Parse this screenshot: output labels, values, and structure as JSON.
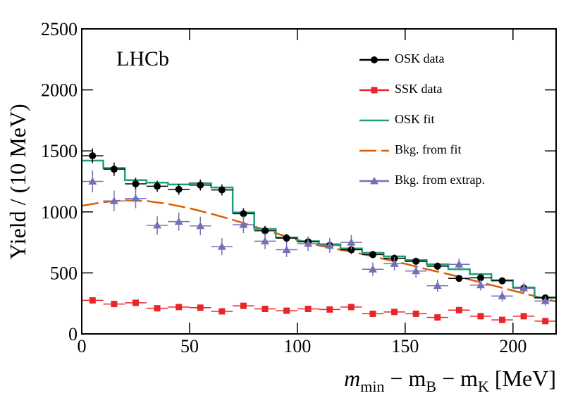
{
  "chart_data": {
    "type": "histogram-points",
    "annotation": "LHCb",
    "ylabel": "Yield / (10 MeV)",
    "xlabel": [
      "m",
      "min",
      " − m",
      "B",
      " − m",
      "K",
      " [MeV]"
    ],
    "xlim": [
      0,
      220
    ],
    "xticks": [
      0,
      50,
      100,
      150,
      200
    ],
    "ylim": [
      0,
      2500
    ],
    "yticks": [
      0,
      500,
      1000,
      1500,
      2000,
      2500
    ],
    "x": [
      5,
      15,
      25,
      35,
      45,
      55,
      65,
      75,
      85,
      95,
      105,
      115,
      125,
      135,
      145,
      155,
      165,
      175,
      185,
      195,
      205,
      215
    ],
    "xerr": 5,
    "series": [
      {
        "name": "OSK data",
        "color": "#000000",
        "style": "points",
        "marker": "circle",
        "values": [
          1460,
          1350,
          1230,
          1210,
          1185,
          1220,
          1180,
          985,
          845,
          785,
          755,
          725,
          690,
          650,
          620,
          595,
          555,
          455,
          460,
          435,
          375,
          295
        ],
        "yerr": [
          60,
          55,
          50,
          45,
          45,
          45,
          45,
          45,
          40,
          35,
          35,
          35,
          35,
          30,
          30,
          30,
          30,
          25,
          25,
          25,
          25,
          25
        ]
      },
      {
        "name": "SSK data",
        "color": "#e8262a",
        "style": "points",
        "marker": "square",
        "values": [
          275,
          245,
          255,
          210,
          220,
          215,
          185,
          230,
          205,
          190,
          205,
          200,
          220,
          165,
          180,
          165,
          135,
          195,
          145,
          115,
          145,
          105
        ],
        "yerr": [
          20,
          20,
          20,
          18,
          18,
          18,
          18,
          18,
          18,
          18,
          18,
          18,
          18,
          16,
          16,
          16,
          15,
          16,
          15,
          14,
          15,
          14
        ]
      },
      {
        "name": "OSK fit",
        "color": "#1f9e78",
        "style": "step",
        "values": [
          1420,
          1360,
          1260,
          1240,
          1225,
          1235,
          1200,
          995,
          860,
          790,
          760,
          735,
          700,
          665,
          635,
          605,
          570,
          530,
          490,
          440,
          380,
          300
        ]
      },
      {
        "name": "Bkg. from fit",
        "color": "#d95f02",
        "style": "dashed",
        "x": [
          0,
          10,
          20,
          30,
          40,
          50,
          60,
          70,
          80,
          90,
          100,
          110,
          120,
          130,
          140,
          150,
          160,
          170,
          180,
          190,
          200,
          210,
          220
        ],
        "values": [
          1050,
          1080,
          1095,
          1090,
          1065,
          1030,
          985,
          935,
          880,
          825,
          770,
          725,
          690,
          655,
          615,
          575,
          530,
          490,
          445,
          400,
          355,
          310,
          265
        ]
      },
      {
        "name": "Bkg. from extrap.",
        "color": "#7570b3",
        "style": "points",
        "marker": "triangle",
        "values": [
          1250,
          1090,
          1110,
          890,
          920,
          885,
          715,
          895,
          760,
          690,
          740,
          725,
          750,
          530,
          575,
          515,
          395,
          570,
          400,
          310,
          375,
          270
        ],
        "yerr": [
          90,
          85,
          80,
          75,
          75,
          75,
          70,
          70,
          65,
          60,
          60,
          60,
          60,
          55,
          55,
          55,
          50,
          50,
          45,
          45,
          45,
          40
        ]
      }
    ]
  }
}
